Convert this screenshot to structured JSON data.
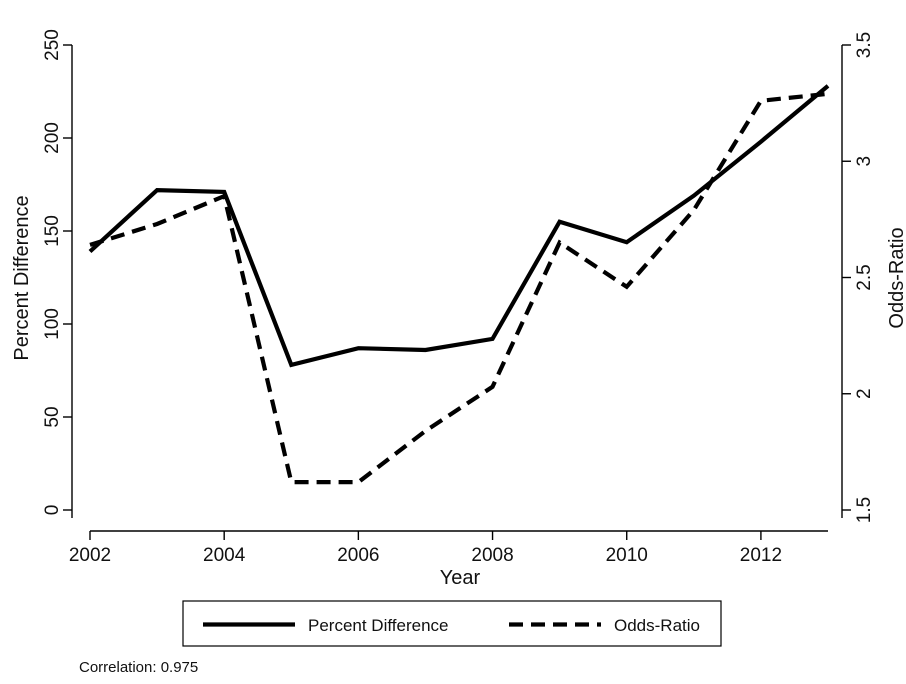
{
  "chart_data": {
    "type": "line",
    "x": [
      2002,
      2003,
      2004,
      2005,
      2006,
      2007,
      2008,
      2009,
      2010,
      2011,
      2012,
      2013
    ],
    "xlabel": "Year",
    "xlim": [
      2002,
      2013
    ],
    "xticks": [
      2002,
      2004,
      2006,
      2008,
      2010,
      2012
    ],
    "y_left": {
      "label": "Percent Difference",
      "lim": [
        0,
        250
      ],
      "ticks": [
        0,
        50,
        100,
        150,
        200,
        250
      ]
    },
    "y_right": {
      "label": "Odds-Ratio",
      "lim": [
        1.5,
        3.5
      ],
      "ticks": [
        1.5,
        2,
        2.5,
        3,
        3.5
      ]
    },
    "series": [
      {
        "name": "Percent Difference",
        "axis": "left",
        "style": "solid",
        "values": [
          139,
          172,
          171,
          78,
          87,
          86,
          92,
          155,
          144,
          169,
          198,
          228
        ]
      },
      {
        "name": "Odds-Ratio",
        "axis": "right",
        "style": "dashed",
        "values": [
          2.64,
          2.73,
          2.85,
          1.62,
          1.62,
          1.84,
          2.03,
          2.65,
          2.46,
          2.79,
          3.26,
          3.29
        ]
      }
    ],
    "grid": false,
    "legend": "bottom",
    "note": "Correlation: 0.975",
    "line_color": "#000000"
  }
}
